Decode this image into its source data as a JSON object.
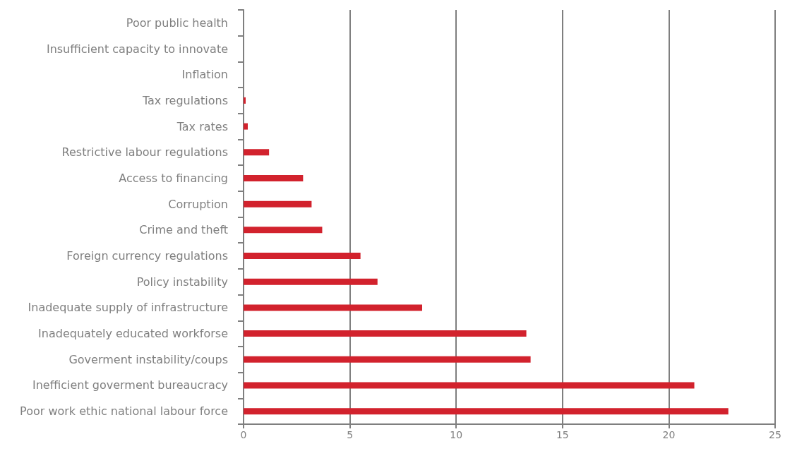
{
  "chart_data": {
    "type": "bar",
    "orientation": "horizontal",
    "categories": [
      "Poor public health",
      "Insufficient capacity to innovate",
      "Inflation",
      "Tax regulations",
      "Tax rates",
      "Restrictive labour regulations",
      "Access to financing",
      "Corruption",
      "Crime and theft",
      "Foreign currency regulations",
      "Policy instability",
      "Inadequate supply of infrastructure",
      "Inadequately educated workforse",
      "Goverment instability/coups",
      "Inefficient goverment bureaucracy",
      "Poor work ethic national labour force"
    ],
    "values": [
      0,
      0,
      0,
      0.1,
      0.2,
      1.2,
      2.8,
      3.2,
      3.7,
      5.5,
      6.3,
      8.4,
      13.3,
      13.5,
      21.2,
      22.8
    ],
    "color": "#d2222d",
    "xlim": [
      0,
      25
    ],
    "xticks": [
      0,
      5,
      10,
      15,
      20,
      25
    ],
    "grid": "x"
  }
}
